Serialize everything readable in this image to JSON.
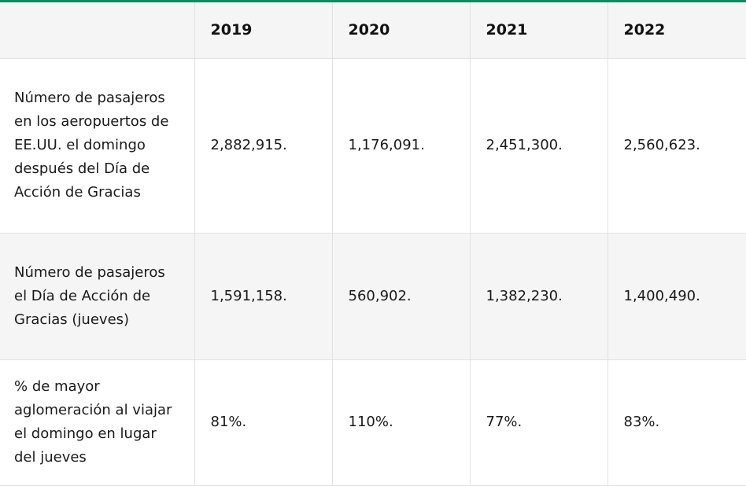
{
  "table": {
    "header": {
      "corner": "",
      "years": [
        "2019",
        "2020",
        "2021",
        "2022"
      ]
    },
    "rows": [
      {
        "label": "Número de pasajeros en los aeropuertos de EE.UU. el domingo después del Día de Acción de Gracias",
        "values": [
          "2,882,915.",
          "1,176,091.",
          "2,451,300.",
          "2,560,623."
        ]
      },
      {
        "label": "Número de pasajeros el Día de Acción de Gracias (jueves)",
        "values": [
          "1,591,158.",
          "560,902.",
          "1,382,230.",
          "1,400,490."
        ]
      },
      {
        "label": "% de mayor aglomeración al viajar el domingo en lugar del jueves",
        "values": [
          "81%.",
          "110%.",
          "77%.",
          "83%."
        ]
      }
    ]
  },
  "colors": {
    "accent_top_border": "#0e8a5f",
    "header_background": "#f5f5f5",
    "stripe_background": "#f5f5f5",
    "grid_line": "#e2e2e2"
  }
}
